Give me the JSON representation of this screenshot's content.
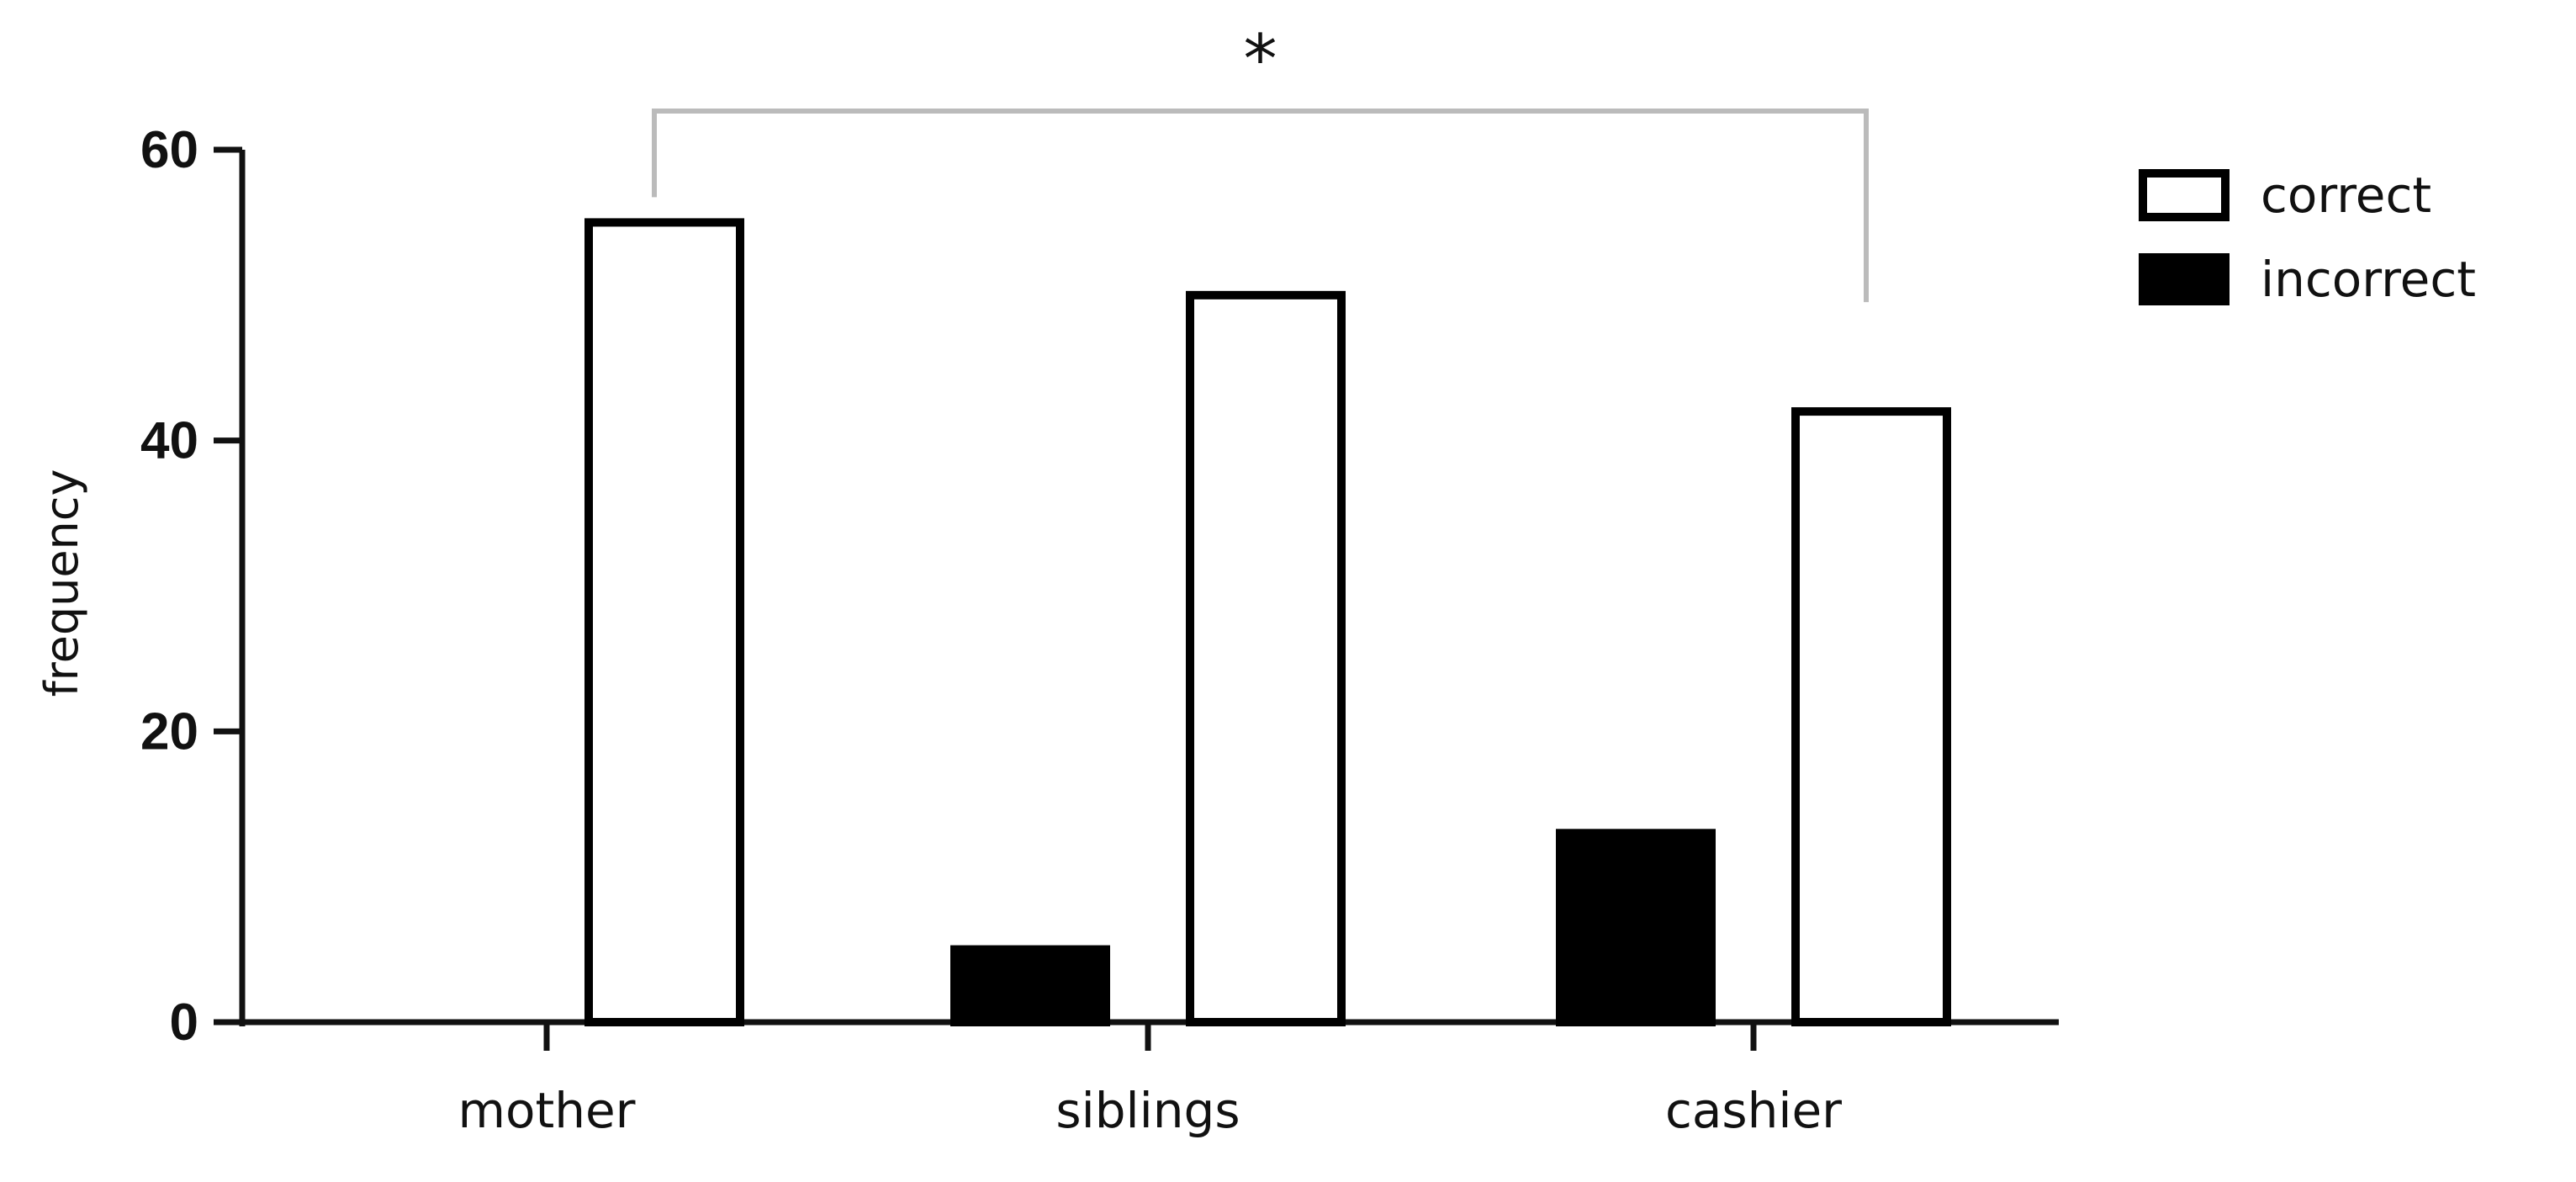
{
  "chart_data": {
    "type": "bar",
    "categories": [
      "mother",
      "siblings",
      "cashier"
    ],
    "series": [
      {
        "name": "incorrect",
        "values": [
          0,
          5,
          13
        ],
        "color": "#000000",
        "fill": "#000000"
      },
      {
        "name": "correct",
        "values": [
          55,
          50,
          42
        ],
        "color": "#000000",
        "fill": "#ffffff"
      }
    ],
    "ylabel": "frequency",
    "xlabel": "",
    "ylim": [
      0,
      60
    ],
    "yticks": [
      0,
      20,
      40,
      60
    ],
    "legend": {
      "placement": "top-right",
      "entries": [
        {
          "label": "correct",
          "fill": "#ffffff"
        },
        {
          "label": "incorrect",
          "fill": "#000000"
        }
      ]
    },
    "annotation": {
      "text": "*",
      "type": "significance-bracket",
      "from_category": "mother",
      "to_category": "cashier",
      "series": "correct",
      "color": "#bbbbbb"
    },
    "grid": false
  }
}
